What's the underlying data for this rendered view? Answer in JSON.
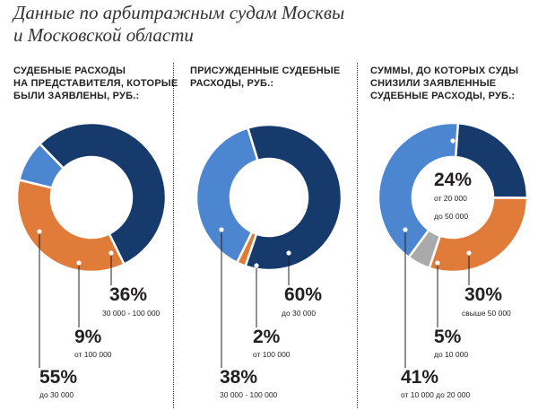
{
  "title": {
    "line1": "Данные по арбитражным судам Москвы",
    "line2": "и Московской области"
  },
  "colors": {
    "navy": "#173a6c",
    "orange": "#e07b39",
    "blue": "#4d86d0",
    "gray": "#aaaaaa"
  },
  "chart_data": [
    {
      "type": "pie",
      "variant": "donut",
      "title": "СУДЕБНЫЕ РАСХОДЫ НА ПРЕДСТАВИТЕЛЯ, КОТОРЫЕ БЫЛИ ЗАЯВЛЕНЫ, РУБ.:",
      "heading_lines": [
        "СУДЕБНЫЕ РАСХОДЫ",
        "НА ПРЕДСТАВИТЕЛЯ, КОТОРЫЕ",
        "БЫЛИ ЗАЯВЛЕНЫ, РУБ.:"
      ],
      "slices": [
        {
          "label": "до 30 000",
          "value": 55,
          "display": "55%",
          "color": "#173a6c"
        },
        {
          "label": "30 000 - 100 000",
          "value": 36,
          "display": "36%",
          "color": "#e07b39"
        },
        {
          "label": "от 100 000",
          "value": 9,
          "display": "9%",
          "color": "#4d86d0"
        }
      ]
    },
    {
      "type": "pie",
      "variant": "donut",
      "title": "ПРИСУЖДЕННЫЕ СУДЕБНЫЕ РАСХОДЫ, РУБ.:",
      "heading_lines": [
        "ПРИСУЖДЕННЫЕ СУДЕБНЫЕ",
        "РАСХОДЫ, РУБ.:"
      ],
      "slices": [
        {
          "label": "до 30 000",
          "value": 60,
          "display": "60%",
          "color": "#173a6c"
        },
        {
          "label": "от 100 000",
          "value": 2,
          "display": "2%",
          "color": "#e07b39"
        },
        {
          "label": "30 000 - 100 000",
          "value": 38,
          "display": "38%",
          "color": "#4d86d0"
        }
      ]
    },
    {
      "type": "pie",
      "variant": "donut",
      "title": "СУММЫ, ДО КОТОРЫХ СУДЫ СНИЗИЛИ ЗАЯВЛЕННЫЕ СУДЕБНЫЕ РАСХОДЫ, РУБ.:",
      "heading_lines": [
        "СУММЫ, ДО КОТОРЫХ СУДЫ",
        "СНИЗИЛИ ЗАЯВЛЕННЫЕ",
        "СУДЕБНЫЕ РАСХОДЫ, РУБ.:"
      ],
      "slices": [
        {
          "label": "от 20 000 до 50 000",
          "value": 24,
          "display": "24%",
          "color": "#173a6c",
          "label_lines": [
            "от 20 000",
            "до 50 000"
          ]
        },
        {
          "label": "свыше 50 000",
          "value": 30,
          "display": "30%",
          "color": "#e07b39"
        },
        {
          "label": "до 10 000",
          "value": 5,
          "display": "5%",
          "color": "#aaaaaa"
        },
        {
          "label": "от 10 000 до 20 000",
          "value": 41,
          "display": "41%",
          "color": "#4d86d0"
        }
      ]
    }
  ]
}
